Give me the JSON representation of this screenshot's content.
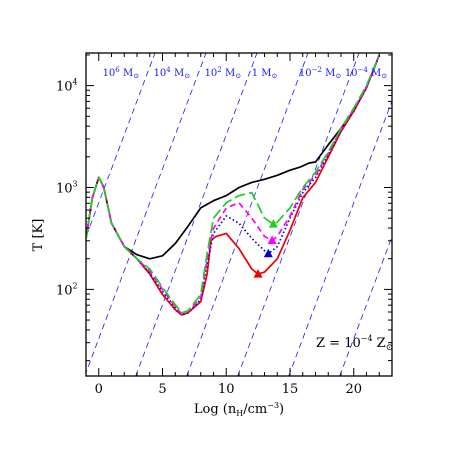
{
  "chart_data": {
    "type": "line",
    "xlabel_main": "Log (n",
    "xlabel_sub": "H",
    "xlabel_unit": "/cm",
    "xlabel_sup": "−3",
    "xlabel_close": ")",
    "ylabel": "T [K]",
    "xlim": [
      -1,
      23
    ],
    "ylim_log10": [
      1.15,
      4.32
    ],
    "x_ticks": [
      0,
      5,
      10,
      15,
      20
    ],
    "x_tick_labels": [
      "0",
      "5",
      "10",
      "15",
      "20"
    ],
    "y_ticks": [
      {
        "base": "10",
        "exp": "2",
        "log10": 2
      },
      {
        "base": "10",
        "exp": "3",
        "log10": 3
      },
      {
        "base": "10",
        "exp": "4",
        "log10": 4
      }
    ],
    "annotation": {
      "main": "Z = 10",
      "exp": "−4",
      "tail": " Z",
      "sub": "⊙"
    },
    "jeans_mass_labels": [
      {
        "base": "10",
        "exp": "6",
        "unit": " M",
        "sub": "⊙",
        "x": 0.3
      },
      {
        "base": "10",
        "exp": "4",
        "unit": " M",
        "sub": "⊙",
        "x": 4.3
      },
      {
        "base": "10",
        "exp": "2",
        "unit": " M",
        "sub": "⊙",
        "x": 8.3
      },
      {
        "base": "",
        "exp": "",
        "unit": "1 M",
        "sub": "⊙",
        "x": 12.0
      },
      {
        "base": "10",
        "exp": "−2",
        "unit": " M",
        "sub": "⊙",
        "x": 15.7
      },
      {
        "base": "10",
        "exp": "−4",
        "unit": " M",
        "sub": "⊙",
        "x": 19.3
      }
    ],
    "jeans_lines": {
      "color": "#1a1aff",
      "slope": 0.3333,
      "x_at_log10T_1_15": [
        -5.1,
        -1.1,
        2.9,
        6.9,
        10.9,
        14.9,
        18.9
      ]
    },
    "series": [
      {
        "color": "#000000",
        "dash": "solid",
        "marker": null,
        "x": [
          -1,
          -0.5,
          0,
          0.4,
          1,
          2,
          3,
          4,
          5,
          6,
          7,
          8,
          9,
          10,
          11,
          12,
          13,
          14,
          15,
          15.8,
          16.5,
          17,
          18,
          19,
          20,
          21,
          22
        ],
        "log10T": [
          2.5,
          2.9,
          3.1,
          3.0,
          2.65,
          2.42,
          2.34,
          2.3,
          2.33,
          2.45,
          2.62,
          2.8,
          2.87,
          2.92,
          3.0,
          3.05,
          3.08,
          3.12,
          3.17,
          3.2,
          3.24,
          3.25,
          3.42,
          3.58,
          3.75,
          3.98,
          4.3
        ]
      },
      {
        "color": "#ee0000",
        "dash": "solid",
        "marker": {
          "shape": "triangle",
          "x": 12.5,
          "log10T": 2.15
        },
        "x": [
          -1,
          -0.5,
          0,
          0.4,
          1,
          2,
          3,
          4,
          5,
          6,
          6.5,
          7,
          8,
          8.5,
          8.8,
          9.2,
          10,
          11,
          12,
          12.5,
          13,
          14,
          15,
          16,
          17,
          18,
          19,
          20,
          21,
          22
        ],
        "log10T": [
          2.5,
          2.9,
          3.1,
          3.0,
          2.65,
          2.42,
          2.3,
          2.15,
          1.95,
          1.8,
          1.75,
          1.77,
          1.88,
          2.15,
          2.48,
          2.52,
          2.55,
          2.4,
          2.2,
          2.15,
          2.17,
          2.3,
          2.58,
          2.9,
          3.05,
          3.3,
          3.55,
          3.75,
          3.98,
          4.3
        ]
      },
      {
        "color": "#0000cc",
        "dash": "dotted",
        "marker": {
          "shape": "triangle",
          "x": 13.3,
          "log10T": 2.35
        },
        "x": [
          -1,
          -0.5,
          0,
          0.4,
          1,
          2,
          3,
          4,
          5,
          6,
          6.5,
          7,
          8,
          8.5,
          9,
          10,
          11,
          12,
          13,
          13.3,
          14,
          15,
          16,
          17,
          18,
          19,
          20,
          21,
          22
        ],
        "log10T": [
          2.5,
          2.9,
          3.1,
          3.0,
          2.65,
          2.42,
          2.3,
          2.16,
          1.98,
          1.82,
          1.75,
          1.77,
          1.9,
          2.25,
          2.55,
          2.72,
          2.65,
          2.5,
          2.38,
          2.35,
          2.42,
          2.7,
          2.95,
          3.1,
          3.32,
          3.56,
          3.76,
          3.98,
          4.3
        ]
      },
      {
        "color": "#ff00ff",
        "dash": "dashed",
        "marker": {
          "shape": "triangle",
          "x": 13.6,
          "log10T": 2.48
        },
        "x": [
          -1,
          -0.5,
          0,
          0.4,
          1,
          2,
          3,
          4,
          5,
          6,
          6.5,
          7,
          8,
          8.5,
          9,
          10,
          11,
          12,
          13,
          13.6,
          14,
          15,
          16,
          17,
          18,
          19,
          20,
          21,
          22
        ],
        "log10T": [
          2.5,
          2.9,
          3.1,
          3.0,
          2.65,
          2.42,
          2.3,
          2.18,
          2.0,
          1.83,
          1.76,
          1.78,
          1.92,
          2.3,
          2.6,
          2.8,
          2.85,
          2.7,
          2.52,
          2.48,
          2.52,
          2.72,
          2.98,
          3.12,
          3.34,
          3.57,
          3.77,
          3.99,
          4.3
        ]
      },
      {
        "color": "#22cc22",
        "dash": "longdash",
        "marker": {
          "shape": "triangle",
          "x": 13.7,
          "log10T": 2.64
        },
        "x": [
          -1,
          -0.5,
          0,
          0.4,
          1,
          2,
          3,
          4,
          5,
          6,
          6.5,
          7,
          8,
          8.5,
          9,
          10,
          11,
          12,
          13,
          13.7,
          14,
          15,
          16,
          17,
          18,
          19,
          20,
          21,
          22
        ],
        "log10T": [
          2.5,
          2.9,
          3.1,
          3.0,
          2.65,
          2.42,
          2.3,
          2.2,
          2.02,
          1.85,
          1.77,
          1.79,
          1.95,
          2.35,
          2.7,
          2.85,
          2.92,
          2.95,
          2.7,
          2.64,
          2.66,
          2.8,
          3.0,
          3.15,
          3.35,
          3.58,
          3.78,
          4.0,
          4.3
        ]
      }
    ]
  }
}
